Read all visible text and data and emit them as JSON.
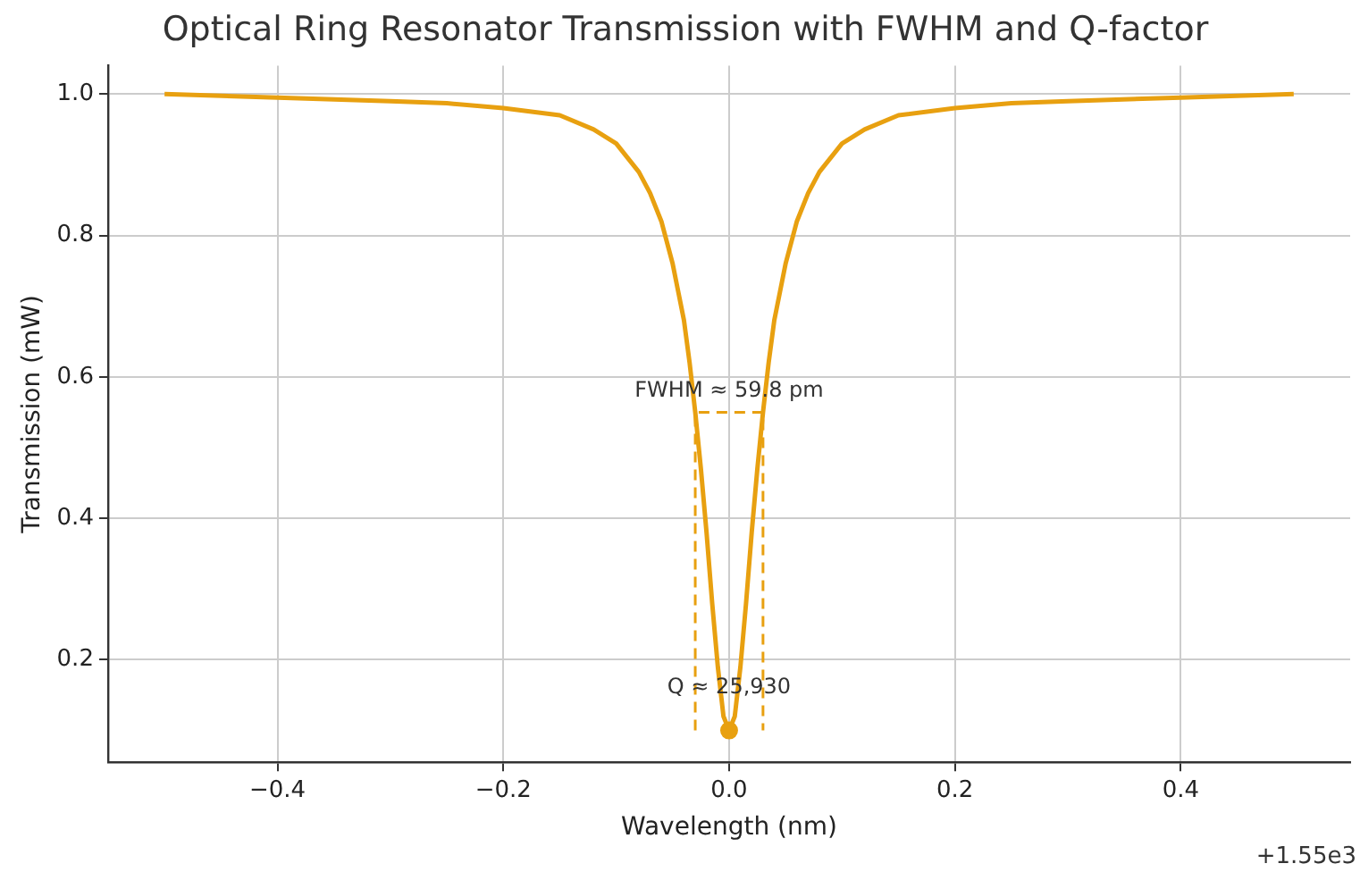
{
  "chart_data": {
    "type": "line",
    "title": "Optical Ring Resonator Transmission with FWHM and Q-factor",
    "xlabel": "Wavelength (nm)",
    "ylabel": "Transmission (mW)",
    "series": [
      {
        "color": "#e8a010",
        "x": [
          -0.5,
          -0.4,
          -0.3,
          -0.25,
          -0.2,
          -0.15,
          -0.12,
          -0.1,
          -0.08,
          -0.07,
          -0.06,
          -0.05,
          -0.045,
          -0.04,
          -0.035,
          -0.03,
          -0.025,
          -0.02,
          -0.015,
          -0.01,
          -0.005,
          0,
          0.005,
          0.01,
          0.015,
          0.02,
          0.025,
          0.03,
          0.035,
          0.04,
          0.045,
          0.05,
          0.06,
          0.07,
          0.08,
          0.1,
          0.12,
          0.15,
          0.2,
          0.25,
          0.3,
          0.4,
          0.5
        ],
        "values": [
          1.0,
          0.995,
          0.99,
          0.987,
          0.98,
          0.97,
          0.95,
          0.93,
          0.89,
          0.86,
          0.82,
          0.76,
          0.72,
          0.68,
          0.62,
          0.55,
          0.47,
          0.38,
          0.28,
          0.19,
          0.12,
          0.1,
          0.12,
          0.19,
          0.28,
          0.38,
          0.47,
          0.55,
          0.62,
          0.68,
          0.72,
          0.76,
          0.82,
          0.86,
          0.89,
          0.93,
          0.95,
          0.97,
          0.98,
          0.987,
          0.99,
          0.995,
          1.0
        ]
      },
      {
        "type": "line",
        "color": "#e8a010",
        "line_style": "dashed",
        "x": [
          -0.03,
          -0.03,
          0.03,
          0.03
        ],
        "values": [
          0.1,
          0.55,
          0.55,
          0.1
        ]
      },
      {
        "type": "scatter",
        "color": "#e8a010",
        "marker": "circle",
        "x": [
          0
        ],
        "values": [
          0.1
        ]
      }
    ],
    "xlim": [
      -0.55,
      0.55
    ],
    "ylim": [
      0.055,
      1.04
    ],
    "xticks": [
      {
        "value": -0.4,
        "label": "−0.4"
      },
      {
        "value": -0.2,
        "label": "−0.2"
      },
      {
        "value": 0,
        "label": "0.0"
      },
      {
        "value": 0.2,
        "label": "0.2"
      },
      {
        "value": 0.4,
        "label": "0.4"
      }
    ],
    "yticks": [
      {
        "value": 0.2,
        "label": "0.2"
      },
      {
        "value": 0.4,
        "label": "0.4"
      },
      {
        "value": 0.6,
        "label": "0.6"
      },
      {
        "value": 0.8,
        "label": "0.8"
      },
      {
        "value": 1.0,
        "label": "1.0"
      }
    ],
    "grid": true,
    "legend": false,
    "annotations": [
      {
        "text": "FWHM ≈ 59.8 pm",
        "x": 0,
        "y": 0.55
      },
      {
        "text": "Q ≈ 25,930",
        "x": 0,
        "y": 0.1
      },
      "+1.55e3"
    ]
  }
}
